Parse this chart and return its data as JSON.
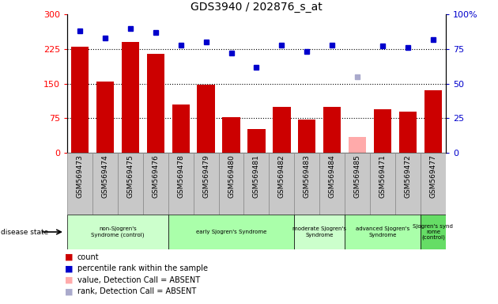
{
  "title": "GDS3940 / 202876_s_at",
  "samples": [
    "GSM569473",
    "GSM569474",
    "GSM569475",
    "GSM569476",
    "GSM569478",
    "GSM569479",
    "GSM569480",
    "GSM569481",
    "GSM569482",
    "GSM569483",
    "GSM569484",
    "GSM569485",
    "GSM569471",
    "GSM569472",
    "GSM569477"
  ],
  "counts": [
    230,
    155,
    240,
    215,
    105,
    148,
    78,
    52,
    100,
    72,
    100,
    35,
    95,
    90,
    135
  ],
  "count_absent": [
    false,
    false,
    false,
    false,
    false,
    false,
    false,
    false,
    false,
    false,
    false,
    true,
    false,
    false,
    false
  ],
  "percentile_ranks": [
    88,
    83,
    90,
    87,
    78,
    80,
    72,
    62,
    78,
    73,
    78,
    55,
    77,
    76,
    82
  ],
  "rank_absent": [
    false,
    false,
    false,
    false,
    false,
    false,
    false,
    false,
    false,
    false,
    false,
    true,
    false,
    false,
    false
  ],
  "groups": [
    {
      "label": "non-Sjogren's\nSyndrome (control)",
      "start": 0,
      "end": 4,
      "color": "#ccffcc"
    },
    {
      "label": "early Sjogren's Syndrome",
      "start": 4,
      "end": 9,
      "color": "#aaffaa"
    },
    {
      "label": "moderate Sjogren's\nSyndrome",
      "start": 9,
      "end": 11,
      "color": "#ccffcc"
    },
    {
      "label": "advanced Sjogren's\nSyndrome",
      "start": 11,
      "end": 14,
      "color": "#aaffaa"
    },
    {
      "label": "Sjogren's synd\nrome\n(control)",
      "start": 14,
      "end": 15,
      "color": "#66dd66"
    }
  ],
  "ylim_left": [
    0,
    300
  ],
  "ylim_right": [
    0,
    100
  ],
  "yticks_left": [
    0,
    75,
    150,
    225,
    300
  ],
  "yticks_right": [
    0,
    25,
    50,
    75,
    100
  ],
  "bar_color": "#cc0000",
  "bar_absent_color": "#ffaaaa",
  "dot_color": "#0000cc",
  "dot_absent_color": "#aaaacc",
  "xtick_bg": "#c8c8c8",
  "right_axis_color": "#0000cc",
  "plot_bg": "#ffffff"
}
